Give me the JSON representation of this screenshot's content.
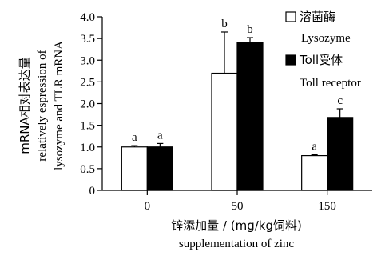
{
  "chart_data": {
    "type": "bar",
    "categories": [
      "0",
      "50",
      "150"
    ],
    "series": [
      {
        "name": "溶菌酶",
        "name_en": "Lysozyme",
        "values": [
          1.0,
          2.7,
          0.8
        ],
        "errors": [
          0.03,
          0.95,
          0.02
        ],
        "labels": [
          "a",
          "b",
          "a"
        ],
        "color": "#ffffff"
      },
      {
        "name": "Toll受体",
        "name_en": "Toll receptor",
        "values": [
          1.0,
          3.4,
          1.68
        ],
        "errors": [
          0.08,
          0.12,
          0.2
        ],
        "labels": [
          "a",
          "b",
          "c"
        ],
        "color": "#000000"
      }
    ],
    "ylim": [
      0,
      4.0
    ],
    "yticks": [
      "0",
      "0.5",
      "1.0",
      "1.5",
      "2.0",
      "2.5",
      "3.0",
      "3.5",
      "4.0"
    ],
    "xlabel": "锌添加量 / (mg/kg饲料)",
    "xlabel_en": "supplementation of zinc",
    "ylabel": "mRNA相对表达量",
    "ylabel_en_1": "relatively espression of",
    "ylabel_en_2": "lysozyme and TLR mRNA",
    "grid": false,
    "legend_position": "top-right"
  }
}
